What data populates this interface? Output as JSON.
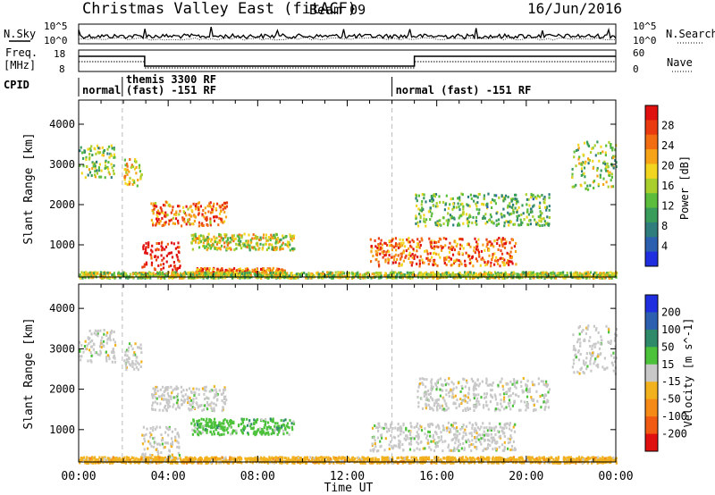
{
  "header": {
    "station": "Christmas Valley East (fitACF)",
    "beam": "Beam 09",
    "date": "16/Jun/2016"
  },
  "strips": {
    "nsky_label": "N.Sky",
    "nsky_ticks": [
      "10^5",
      "10^0"
    ],
    "nsearch_label": "N.Search",
    "nsearch_ticks": [
      "10^5",
      "10^0"
    ],
    "freq_label_1": "Freq.",
    "freq_label_2": "[MHz]",
    "freq_ticks": [
      "18",
      "8"
    ],
    "nave_label": "Nave",
    "nave_ticks": [
      "60",
      "0"
    ],
    "cpid_label": "CPID",
    "cpid_segments": [
      {
        "lines": [
          "normal"
        ],
        "start_h": 0,
        "end_h": 1.95
      },
      {
        "lines": [
          "themis 3300 RF",
          "(fast) -151 RF"
        ],
        "start_h": 1.95,
        "end_h": 14.0
      },
      {
        "lines": [
          "normal (fast) -151 RF"
        ],
        "start_h": 14.0,
        "end_h": 24
      }
    ]
  },
  "chart_data": [
    {
      "type": "heatmap",
      "panel": "power",
      "ylabel": "Slant Range [km]",
      "y_ticks": [
        "1000",
        "2000",
        "3000",
        "4000"
      ],
      "ylim": [
        200,
        4600
      ],
      "xlim": [
        0,
        24
      ],
      "colorbar_label": "Power [dB]",
      "colorbar_ticks": [
        "4",
        "8",
        "12",
        "16",
        "20",
        "24",
        "28"
      ],
      "colorbar_colors": [
        "#1f2fe0",
        "#2c5fb0",
        "#2f7d7d",
        "#3a9c5a",
        "#5cbd3c",
        "#a9cf2c",
        "#f2d51e",
        "#f7a317",
        "#f26d12",
        "#ea3a10",
        "#e01010"
      ],
      "regions": [
        {
          "t0": 0.0,
          "t1": 1.6,
          "r0": 2700,
          "r1": 3500,
          "level": 0.45
        },
        {
          "t0": 2.0,
          "t1": 2.8,
          "r0": 2500,
          "r1": 3200,
          "level": 0.6
        },
        {
          "t0": 3.2,
          "t1": 6.6,
          "r0": 1500,
          "r1": 2100,
          "level": 0.75
        },
        {
          "t0": 5.0,
          "t1": 9.6,
          "r0": 900,
          "r1": 1300,
          "level": 0.55
        },
        {
          "t0": 2.8,
          "t1": 4.5,
          "r0": 200,
          "r1": 1100,
          "level": 0.95
        },
        {
          "t0": 5.2,
          "t1": 9.2,
          "r0": 250,
          "r1": 450,
          "level": 0.8
        },
        {
          "t0": 13.0,
          "t1": 19.5,
          "r0": 500,
          "r1": 1200,
          "level": 0.8
        },
        {
          "t0": 15.0,
          "t1": 21.0,
          "r0": 1500,
          "r1": 2300,
          "level": 0.4
        },
        {
          "t0": 22.0,
          "t1": 24.0,
          "r0": 2400,
          "r1": 3600,
          "level": 0.45
        },
        {
          "t0": 0.0,
          "t1": 24.0,
          "r0": 200,
          "r1": 350,
          "level": 0.5
        }
      ]
    },
    {
      "type": "heatmap",
      "panel": "velocity",
      "ylabel": "Slant Range [km]",
      "y_ticks": [
        "1000",
        "2000",
        "3000",
        "4000"
      ],
      "ylim": [
        200,
        4600
      ],
      "xlim": [
        0,
        24
      ],
      "colorbar_label": "Velocity [m s^-1]",
      "colorbar_ticks": [
        "200",
        "100",
        "50",
        "15",
        "-15",
        "-50",
        "-100",
        "-200"
      ],
      "colorbar_colors": [
        "#1f2fe0",
        "#2c5fb0",
        "#2f8a6a",
        "#4cc23a",
        "#c8c8c8",
        "#f2b21e",
        "#f58a17",
        "#f05a12",
        "#e01010"
      ],
      "regions": [
        {
          "t0": 0.0,
          "t1": 1.6,
          "r0": 2700,
          "r1": 3500,
          "cls": "grey"
        },
        {
          "t0": 2.0,
          "t1": 2.8,
          "r0": 2500,
          "r1": 3200,
          "cls": "grey"
        },
        {
          "t0": 3.2,
          "t1": 6.6,
          "r0": 1500,
          "r1": 2100,
          "cls": "grey"
        },
        {
          "t0": 5.0,
          "t1": 9.6,
          "r0": 900,
          "r1": 1300,
          "cls": "green"
        },
        {
          "t0": 2.8,
          "t1": 4.5,
          "r0": 300,
          "r1": 1100,
          "cls": "grey"
        },
        {
          "t0": 13.0,
          "t1": 19.5,
          "r0": 500,
          "r1": 1200,
          "cls": "grey"
        },
        {
          "t0": 15.0,
          "t1": 21.0,
          "r0": 1500,
          "r1": 2300,
          "cls": "grey"
        },
        {
          "t0": 22.0,
          "t1": 24.0,
          "r0": 2400,
          "r1": 3600,
          "cls": "grey"
        },
        {
          "t0": 0.0,
          "t1": 24.0,
          "r0": 200,
          "r1": 350,
          "cls": "orange"
        }
      ]
    }
  ],
  "x_axis": {
    "ticks": [
      "00:00",
      "04:00",
      "08:00",
      "12:00",
      "16:00",
      "20:00",
      "00:00"
    ],
    "label": "Time UT"
  },
  "markers_h": [
    1.95,
    14.0
  ]
}
